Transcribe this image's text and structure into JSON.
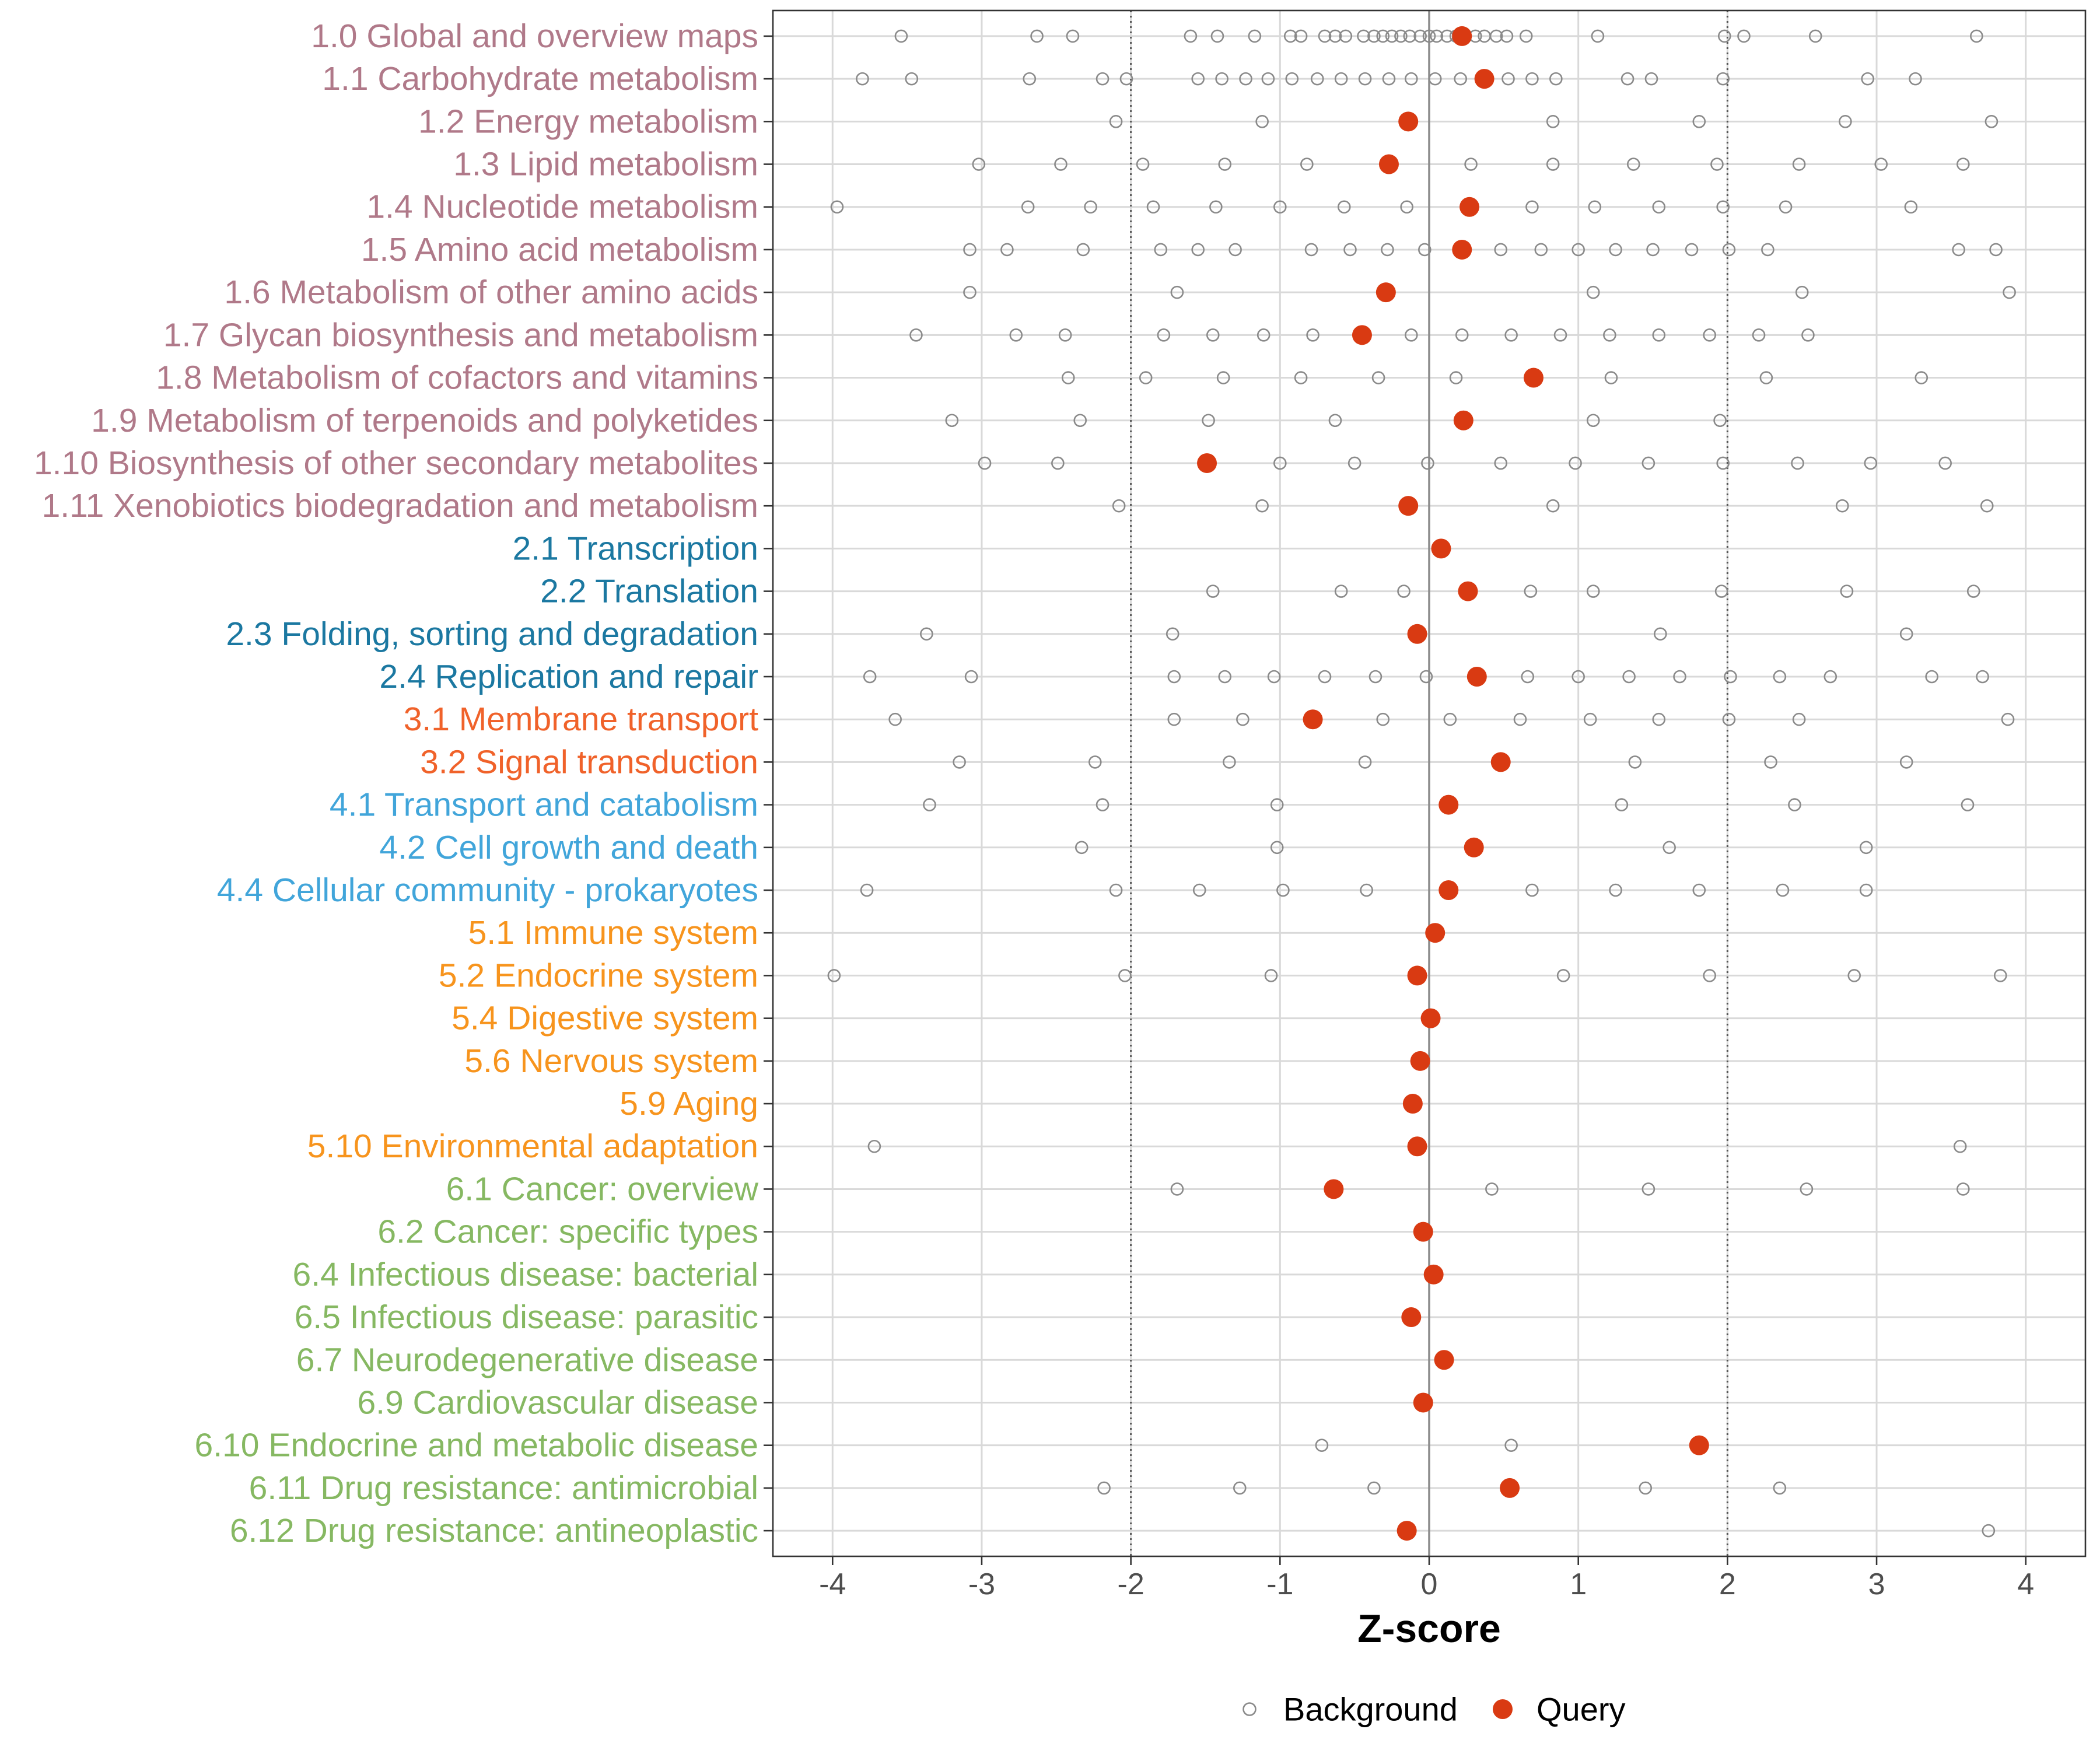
{
  "chart_data": {
    "type": "scatter",
    "title": "",
    "xlabel": "Z-score",
    "ylabel": "",
    "xlim": [
      -4.4,
      4.4
    ],
    "xticks": [
      -4,
      -3,
      -2,
      -1,
      0,
      1,
      2,
      3,
      4
    ],
    "xtick_labels": [
      "-4",
      "-3",
      "-2",
      "-1",
      "0",
      "1",
      "2",
      "3",
      "4"
    ],
    "grid": true,
    "reference_lines": {
      "dotted": [
        -2,
        2
      ],
      "solid": [
        0
      ]
    },
    "legend": {
      "position": "bottom",
      "entries": [
        {
          "label": "Background",
          "marker": "open-circle"
        },
        {
          "label": "Query",
          "marker": "filled-circle"
        }
      ]
    },
    "colors": {
      "query": "#D93A12",
      "background": "#8A8A8A",
      "grid": "#D9D9D9",
      "zero_line": "#8C8C8C",
      "threshold_line": "#555555",
      "tick_label": "#4D4D4D",
      "axis": "#333333"
    },
    "group_colors": {
      "1": "#B07989",
      "2": "#1B78A1",
      "3": "#F0622A",
      "4": "#41A5DA",
      "5": "#F7941D",
      "6": "#86B862"
    },
    "categories": [
      {
        "label": "1.0 Global and overview maps",
        "group": "1",
        "query": 0.22,
        "background": [
          -3.54,
          -2.63,
          -2.39,
          -1.6,
          -1.42,
          -1.17,
          -0.93,
          -0.86,
          -0.7,
          -0.63,
          -0.56,
          -0.44,
          -0.37,
          -0.31,
          -0.25,
          -0.19,
          -0.13,
          -0.06,
          0.0,
          0.05,
          0.12,
          0.18,
          0.24,
          0.31,
          0.37,
          0.45,
          0.52,
          0.65,
          1.13,
          1.98,
          2.11,
          2.59,
          3.67
        ]
      },
      {
        "label": "1.1 Carbohydrate metabolism",
        "group": "1",
        "query": 0.37,
        "background": [
          -3.8,
          -3.47,
          -2.68,
          -2.19,
          -2.03,
          -1.55,
          -1.39,
          -1.23,
          -1.08,
          -0.92,
          -0.75,
          -0.59,
          -0.43,
          -0.27,
          -0.12,
          0.04,
          0.21,
          0.53,
          0.69,
          0.85,
          1.33,
          1.49,
          1.97,
          2.94,
          3.26
        ]
      },
      {
        "label": "1.2 Energy metabolism",
        "group": "1",
        "query": -0.14,
        "background": [
          -2.1,
          -1.12,
          0.83,
          1.81,
          2.79,
          3.77
        ]
      },
      {
        "label": "1.3 Lipid metabolism",
        "group": "1",
        "query": -0.27,
        "background": [
          -3.02,
          -2.47,
          -1.92,
          -1.37,
          -0.82,
          0.28,
          0.83,
          1.37,
          1.93,
          2.48,
          3.03,
          3.58
        ]
      },
      {
        "label": "1.4 Nucleotide metabolism",
        "group": "1",
        "query": 0.27,
        "background": [
          -3.97,
          -2.69,
          -2.27,
          -1.85,
          -1.43,
          -1.0,
          -0.57,
          -0.15,
          0.69,
          1.11,
          1.54,
          1.97,
          2.39,
          3.23
        ]
      },
      {
        "label": "1.5 Amino acid metabolism",
        "group": "1",
        "query": 0.22,
        "background": [
          -3.08,
          -2.83,
          -2.32,
          -1.8,
          -1.55,
          -1.3,
          -0.79,
          -0.53,
          -0.28,
          -0.03,
          0.48,
          0.75,
          1.0,
          1.25,
          1.5,
          1.76,
          2.01,
          2.27,
          3.55,
          3.8
        ]
      },
      {
        "label": "1.6 Metabolism of other amino acids",
        "group": "1",
        "query": -0.29,
        "background": [
          -3.08,
          -1.69,
          1.1,
          2.5,
          3.89
        ]
      },
      {
        "label": "1.7 Glycan biosynthesis and metabolism",
        "group": "1",
        "query": -0.45,
        "background": [
          -3.44,
          -2.77,
          -2.44,
          -1.78,
          -1.45,
          -1.11,
          -0.78,
          -0.12,
          0.22,
          0.55,
          0.88,
          1.21,
          1.54,
          1.88,
          2.21,
          2.54
        ]
      },
      {
        "label": "1.8 Metabolism of cofactors and vitamins",
        "group": "1",
        "query": 0.7,
        "background": [
          -2.42,
          -1.9,
          -1.38,
          -0.86,
          -0.34,
          0.18,
          1.22,
          2.26,
          3.3
        ]
      },
      {
        "label": "1.9 Metabolism of terpenoids and polyketides",
        "group": "1",
        "query": 0.23,
        "background": [
          -3.2,
          -2.34,
          -1.48,
          -0.63,
          1.1,
          1.95
        ]
      },
      {
        "label": "1.10 Biosynthesis of other secondary metabolites",
        "group": "1",
        "query": -1.49,
        "background": [
          -2.98,
          -2.49,
          -1.0,
          -0.5,
          -0.01,
          0.48,
          0.98,
          1.47,
          1.97,
          2.47,
          2.96,
          3.46
        ]
      },
      {
        "label": "1.11 Xenobiotics biodegradation and metabolism",
        "group": "1",
        "query": -0.14,
        "background": [
          -2.08,
          -1.12,
          0.83,
          2.77,
          3.74
        ]
      },
      {
        "label": "2.1 Transcription",
        "group": "2",
        "query": 0.08,
        "background": []
      },
      {
        "label": "2.2 Translation",
        "group": "2",
        "query": 0.26,
        "background": [
          -1.45,
          -0.59,
          -0.17,
          0.68,
          1.1,
          1.96,
          2.8,
          3.65
        ]
      },
      {
        "label": "2.3 Folding, sorting and degradation",
        "group": "2",
        "query": -0.08,
        "background": [
          -3.37,
          -1.72,
          1.55,
          3.2
        ]
      },
      {
        "label": "2.4 Replication and repair",
        "group": "2",
        "query": 0.32,
        "background": [
          -3.75,
          -3.07,
          -1.71,
          -1.37,
          -1.04,
          -0.7,
          -0.36,
          -0.02,
          0.66,
          1.0,
          1.34,
          1.68,
          2.02,
          2.35,
          2.69,
          3.37,
          3.71
        ]
      },
      {
        "label": "3.1 Membrane transport",
        "group": "3",
        "query": -0.78,
        "background": [
          -3.58,
          -1.71,
          -1.25,
          -0.31,
          0.14,
          0.61,
          1.08,
          1.54,
          2.01,
          2.48,
          3.88
        ]
      },
      {
        "label": "3.2 Signal transduction",
        "group": "3",
        "query": 0.48,
        "background": [
          -3.15,
          -2.24,
          -1.34,
          -0.43,
          1.38,
          2.29,
          3.2
        ]
      },
      {
        "label": "4.1 Transport and catabolism",
        "group": "4",
        "query": 0.13,
        "background": [
          -3.35,
          -2.19,
          -1.02,
          1.29,
          2.45,
          3.61
        ]
      },
      {
        "label": "4.2 Cell growth and death",
        "group": "4",
        "query": 0.3,
        "background": [
          -2.33,
          -1.02,
          1.61,
          2.93
        ]
      },
      {
        "label": "4.4 Cellular community - prokaryotes",
        "group": "4",
        "query": 0.13,
        "background": [
          -3.77,
          -2.1,
          -1.54,
          -0.98,
          -0.42,
          0.69,
          1.25,
          1.81,
          2.37,
          2.93
        ]
      },
      {
        "label": "5.1 Immune system",
        "group": "5",
        "query": 0.04,
        "background": []
      },
      {
        "label": "5.2 Endocrine system",
        "group": "5",
        "query": -0.08,
        "background": [
          -3.99,
          -2.04,
          -1.06,
          0.9,
          1.88,
          2.85,
          3.83
        ]
      },
      {
        "label": "5.4 Digestive system",
        "group": "5",
        "query": 0.01,
        "background": []
      },
      {
        "label": "5.6 Nervous system",
        "group": "5",
        "query": -0.06,
        "background": []
      },
      {
        "label": "5.9 Aging",
        "group": "5",
        "query": -0.11,
        "background": []
      },
      {
        "label": "5.10 Environmental adaptation",
        "group": "5",
        "query": -0.08,
        "background": [
          -3.72,
          3.56
        ]
      },
      {
        "label": "6.1 Cancer: overview",
        "group": "6",
        "query": -0.64,
        "background": [
          -1.69,
          0.42,
          1.47,
          2.53,
          3.58
        ]
      },
      {
        "label": "6.2 Cancer: specific types",
        "group": "6",
        "query": -0.04,
        "background": []
      },
      {
        "label": "6.4 Infectious disease: bacterial",
        "group": "6",
        "query": 0.03,
        "background": []
      },
      {
        "label": "6.5 Infectious disease: parasitic",
        "group": "6",
        "query": -0.12,
        "background": []
      },
      {
        "label": "6.7 Neurodegenerative disease",
        "group": "6",
        "query": 0.1,
        "background": []
      },
      {
        "label": "6.9 Cardiovascular disease",
        "group": "6",
        "query": -0.04,
        "background": []
      },
      {
        "label": "6.10 Endocrine and metabolic disease",
        "group": "6",
        "query": 1.81,
        "background": [
          -0.72,
          0.55
        ]
      },
      {
        "label": "6.11 Drug resistance: antimicrobial",
        "group": "6",
        "query": 0.54,
        "background": [
          -2.18,
          -1.27,
          -0.37,
          1.45,
          2.35
        ]
      },
      {
        "label": "6.12 Drug resistance: antineoplastic",
        "group": "6",
        "query": -0.15,
        "background": [
          3.75
        ]
      }
    ]
  }
}
